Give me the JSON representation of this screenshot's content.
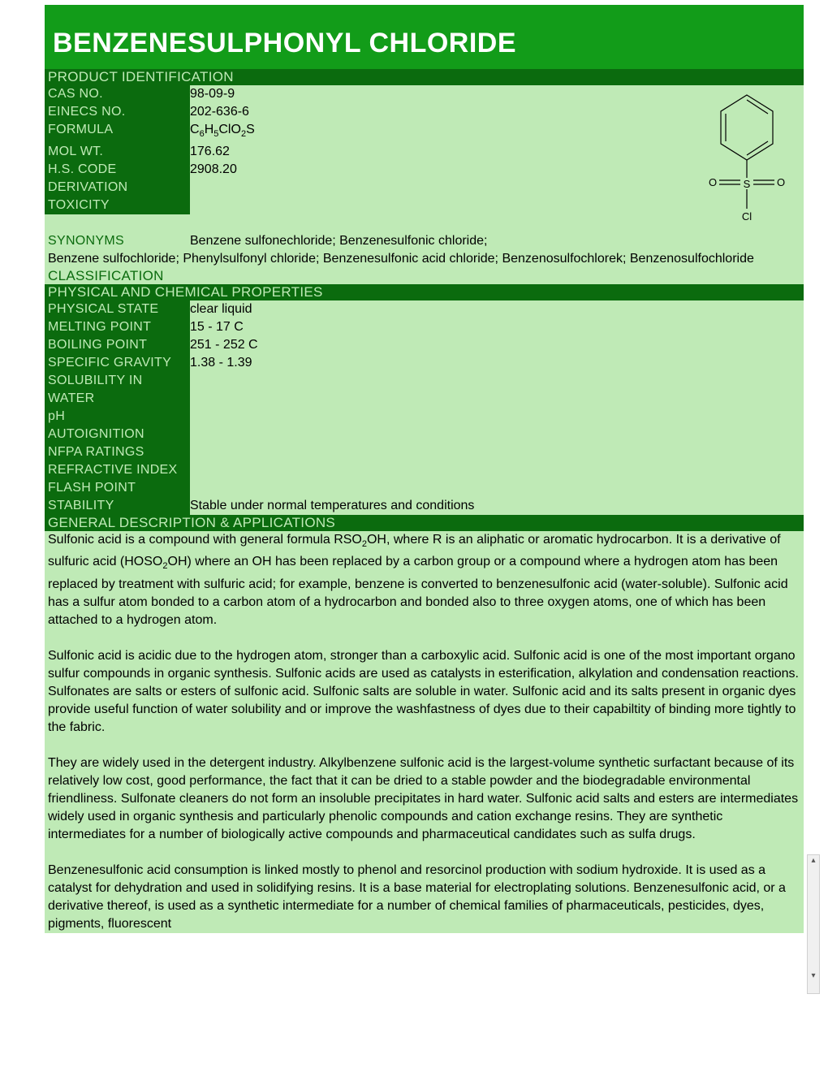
{
  "title": "BENZENESULPHONYL CHLORIDE",
  "colors": {
    "green_bright": "#129c19",
    "green_dark": "#0b6b0e",
    "green_light": "#bfeab6",
    "text_light": "#bfeab6",
    "text_white": "#ffffff",
    "text_black": "#000000"
  },
  "sections": {
    "product_id_header": "PRODUCT IDENTIFICATION",
    "classification_header": "CLASSIFICATION",
    "phys_chem_header": "PHYSICAL AND CHEMICAL PROPERTIES",
    "general_desc_header": "GENERAL DESCRIPTION & APPLICATIONS"
  },
  "product_id": {
    "cas_no": {
      "label": "CAS NO.",
      "value": "98-09-9"
    },
    "einecs_no": {
      "label": "EINECS NO.",
      "value": "202-636-6"
    },
    "formula": {
      "label": "FORMULA",
      "value_html": "C<sub>6</sub>H<sub>5</sub>ClO<sub>2</sub>S"
    },
    "mol_wt": {
      "label": "MOL WT.",
      "value": "176.62"
    },
    "hs_code": {
      "label": "H.S. CODE",
      "value": "2908.20"
    },
    "derivation": {
      "label": "DERIVATION",
      "value": ""
    },
    "toxicity": {
      "label": "TOXICITY",
      "value": ""
    },
    "synonyms_label": "SYNONYMS",
    "synonyms_line1": "Benzene sulfonechloride; Benzenesulfonic chloride;",
    "synonyms_line2": "Benzene sulfochloride; Phenylsulfonyl chloride; Benzenesulfonic acid chloride; Benzenosulfochlorek; Benzenosulfochloride"
  },
  "phys_chem": {
    "physical_state": {
      "label": "PHYSICAL STATE",
      "value": "clear liquid"
    },
    "melting_point": {
      "label": "MELTING POINT",
      "value": "15 - 17 C"
    },
    "boiling_point": {
      "label": "BOILING POINT",
      "value": "251 - 252 C"
    },
    "specific_gravity": {
      "label": "SPECIFIC GRAVITY",
      "value": "1.38 - 1.39"
    },
    "solubility": {
      "label": "SOLUBILITY IN WATER",
      "value": ""
    },
    "ph": {
      "label": "pH",
      "value": ""
    },
    "autoignition": {
      "label": "AUTOIGNITION",
      "value": ""
    },
    "nfpa": {
      "label": "NFPA RATINGS",
      "value": ""
    },
    "refractive_index": {
      "label": "REFRACTIVE INDEX",
      "value": ""
    },
    "flash_point": {
      "label": "FLASH POINT",
      "value": ""
    },
    "stability": {
      "label": "STABILITY",
      "value": "Stable under normal temperatures and conditions"
    }
  },
  "description": {
    "p1_html": "Sulfonic acid is a compound with general formula RSO<sub>2</sub>OH, where R is an aliphatic or aromatic hydrocarbon. It is a derivative of sulfuric acid (HOSO<sub>2</sub>OH) where an OH has been replaced by a carbon group or a compound where a hydrogen atom has been replaced by treatment with sulfuric acid; for example, benzene is converted to benzenesulfonic acid (water-soluble). Sulfonic acid has a sulfur atom bonded to a carbon atom of a hydrocarbon and bonded also to three oxygen atoms, one of which has been attached to a hydrogen atom.",
    "p2": "Sulfonic acid is acidic due to the hydrogen atom, stronger than a carboxylic acid. Sulfonic acid is one of the most important organo sulfur compounds in organic synthesis. Sulfonic acids are used as catalysts in esterification, alkylation and condensation reactions. Sulfonates are salts or esters of sulfonic acid. Sulfonic salts are soluble in water. Sulfonic acid and its salts present in organic dyes provide useful function of water solubility and or improve the washfastness of dyes due to their capabiltity of binding more tightly to the fabric.",
    "p3": "They are widely used in the detergent industry. Alkylbenzene sulfonic acid is the largest-volume synthetic surfactant because of its relatively low cost, good performance, the fact that it can be dried to a stable powder and the biodegradable environmental friendliness. Sulfonate cleaners do not form an insoluble precipitates in hard water. Sulfonic acid salts and esters are intermediates widely used in organic synthesis and particularly phenolic compounds and cation exchange resins. They are synthetic intermediates for a number of biologically active compounds and pharmaceutical candidates such as sulfa drugs.",
    "p4": "Benzenesulfonic acid consumption is linked mostly to phenol and resorcinol production with sodium hydroxide. It is used as a catalyst for dehydration and used in solidifying resins. It is a base material for electroplating solutions. Benzenesulfonic acid, or a derivative thereof, is used as a synthetic intermediate for a number of chemical families of pharmaceuticals, pesticides, dyes, pigments, fluorescent"
  },
  "structure_svg": {
    "stroke": "#000000",
    "label_O": "O",
    "label_S": "S",
    "label_Cl": "Cl"
  }
}
